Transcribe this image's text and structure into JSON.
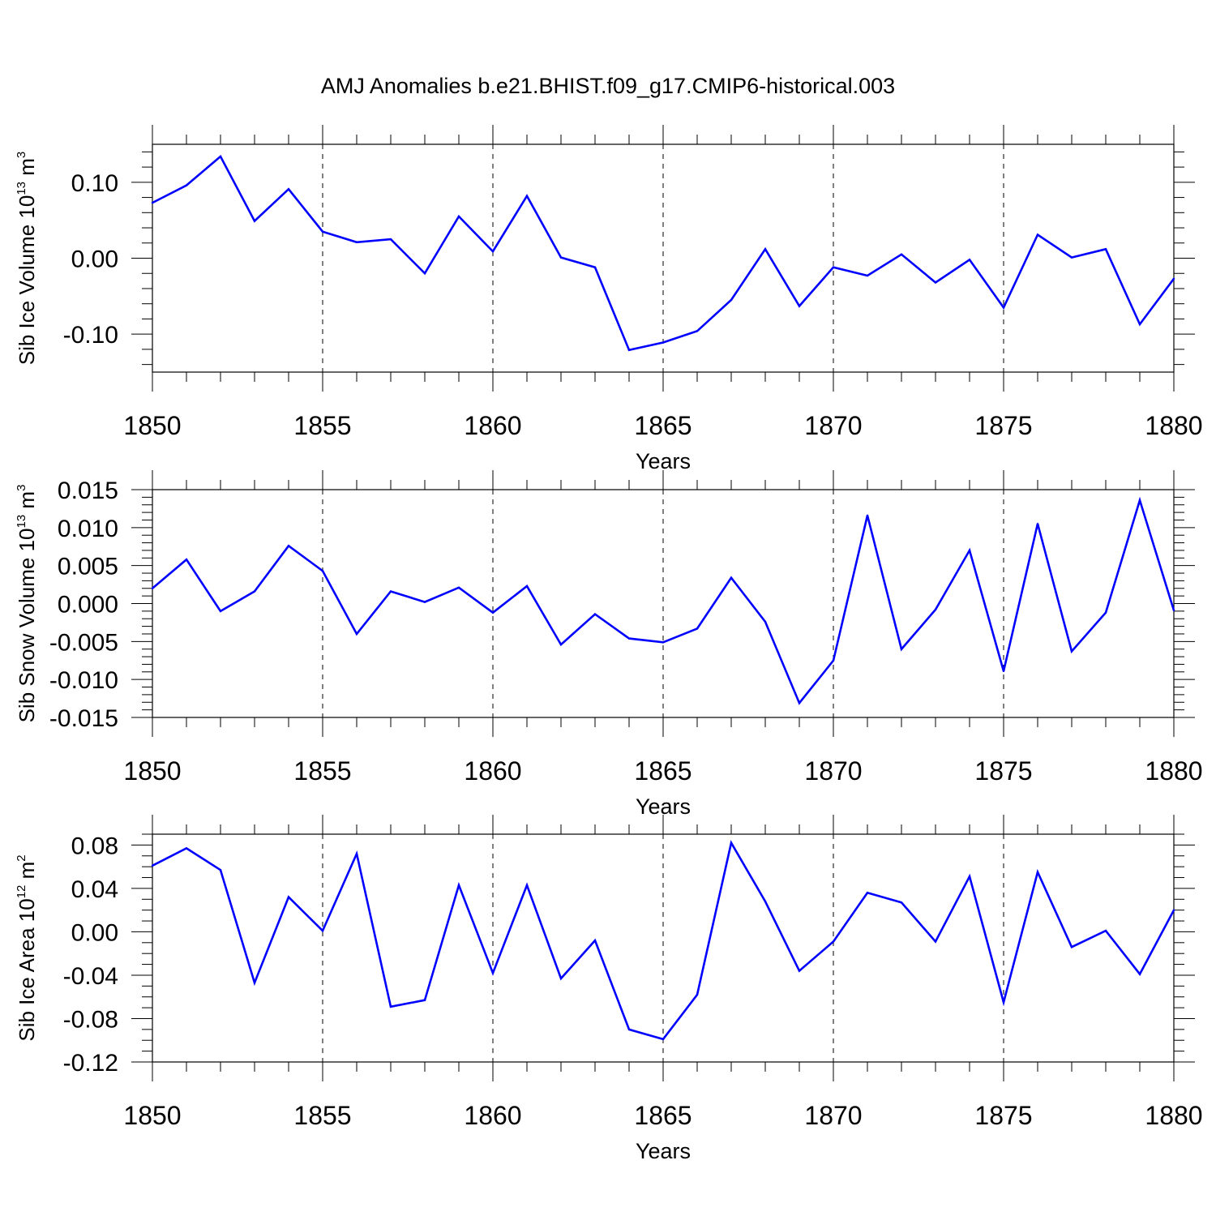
{
  "figure": {
    "title": "AMJ Anomalies b.e21.BHIST.f09_g17.CMIP6-historical.003"
  },
  "chart_data": [
    {
      "type": "line",
      "id": "ice-volume",
      "ylabel": "Sib Ice Volume 10",
      "ylabel_exponent": "13",
      "ylabel_unit": "m",
      "ylabel_unit_exponent": "3",
      "xlabel": "Years",
      "xlim": [
        1850,
        1880
      ],
      "ylim": [
        -0.15,
        0.15
      ],
      "yticks": [
        -0.1,
        0.0,
        0.1
      ],
      "ytick_labels": [
        "-0.10",
        "0.00",
        "0.10"
      ],
      "yminor_step": 0.02,
      "xticks": [
        1850,
        1855,
        1860,
        1865,
        1870,
        1875,
        1880
      ],
      "xtick_labels": [
        "1850",
        "1855",
        "1860",
        "1865",
        "1870",
        "1875",
        "1880"
      ],
      "line_color": "#0000ff",
      "x": [
        1850,
        1851,
        1852,
        1853,
        1854,
        1855,
        1856,
        1857,
        1858,
        1859,
        1860,
        1861,
        1862,
        1863,
        1864,
        1865,
        1866,
        1867,
        1868,
        1869,
        1870,
        1871,
        1872,
        1873,
        1874,
        1875,
        1876,
        1877,
        1878,
        1879,
        1880
      ],
      "values": [
        0.073,
        0.096,
        0.134,
        0.049,
        0.091,
        0.035,
        0.021,
        0.025,
        -0.02,
        0.055,
        0.009,
        0.082,
        0.001,
        -0.012,
        -0.121,
        -0.111,
        -0.096,
        -0.055,
        0.012,
        -0.063,
        -0.012,
        -0.023,
        0.005,
        -0.032,
        -0.002,
        -0.065,
        0.031,
        0.001,
        0.012,
        -0.087,
        -0.027
      ]
    },
    {
      "type": "line",
      "id": "snow-volume",
      "ylabel": "Sib Snow Volume 10",
      "ylabel_exponent": "13",
      "ylabel_unit": "m",
      "ylabel_unit_exponent": "3",
      "xlabel": "Years",
      "xlim": [
        1850,
        1880
      ],
      "ylim": [
        -0.015,
        0.015
      ],
      "yticks": [
        -0.015,
        -0.01,
        -0.005,
        0.0,
        0.005,
        0.01,
        0.015
      ],
      "ytick_labels": [
        "-0.015",
        "-0.010",
        "-0.005",
        "0.000",
        "0.005",
        "0.010",
        "0.015"
      ],
      "yminor_step": 0.001,
      "xticks": [
        1850,
        1855,
        1860,
        1865,
        1870,
        1875,
        1880
      ],
      "xtick_labels": [
        "1850",
        "1855",
        "1860",
        "1865",
        "1870",
        "1875",
        "1880"
      ],
      "line_color": "#0000ff",
      "x": [
        1850,
        1851,
        1852,
        1853,
        1854,
        1855,
        1856,
        1857,
        1858,
        1859,
        1860,
        1861,
        1862,
        1863,
        1864,
        1865,
        1866,
        1867,
        1868,
        1869,
        1870,
        1871,
        1872,
        1873,
        1874,
        1875,
        1876,
        1877,
        1878,
        1879,
        1880
      ],
      "values": [
        0.002,
        0.0058,
        -0.001,
        0.0016,
        0.0076,
        0.0043,
        -0.004,
        0.0016,
        0.0002,
        0.0021,
        -0.0012,
        0.0023,
        -0.0054,
        -0.0014,
        -0.0046,
        -0.0051,
        -0.0033,
        0.0034,
        -0.0024,
        -0.0131,
        -0.0075,
        0.0116,
        -0.006,
        -0.0008,
        0.007,
        -0.0089,
        0.0105,
        -0.0063,
        -0.0012,
        0.0136,
        -0.0009
      ]
    },
    {
      "type": "line",
      "id": "ice-area",
      "ylabel": "Sib Ice Area 10",
      "ylabel_exponent": "12",
      "ylabel_unit": "m",
      "ylabel_unit_exponent": "2",
      "xlabel": "Years",
      "xlim": [
        1850,
        1880
      ],
      "ylim": [
        -0.12,
        0.09
      ],
      "yticks": [
        -0.12,
        -0.08,
        -0.04,
        0.0,
        0.04,
        0.08
      ],
      "ytick_labels": [
        "-0.12",
        "-0.08",
        "-0.04",
        "0.00",
        "0.04",
        "0.08"
      ],
      "yminor_step": 0.01,
      "xticks": [
        1850,
        1855,
        1860,
        1865,
        1870,
        1875,
        1880
      ],
      "xtick_labels": [
        "1850",
        "1855",
        "1860",
        "1865",
        "1870",
        "1875",
        "1880"
      ],
      "line_color": "#0000ff",
      "x": [
        1850,
        1851,
        1852,
        1853,
        1854,
        1855,
        1856,
        1857,
        1858,
        1859,
        1860,
        1861,
        1862,
        1863,
        1864,
        1865,
        1866,
        1867,
        1868,
        1869,
        1870,
        1871,
        1872,
        1873,
        1874,
        1875,
        1876,
        1877,
        1878,
        1879,
        1880
      ],
      "values": [
        0.061,
        0.077,
        0.057,
        -0.047,
        0.032,
        0.001,
        0.072,
        -0.069,
        -0.063,
        0.043,
        -0.038,
        0.043,
        -0.043,
        -0.008,
        -0.09,
        -0.099,
        -0.058,
        0.082,
        0.028,
        -0.036,
        -0.009,
        0.036,
        0.027,
        -0.009,
        0.051,
        -0.065,
        0.055,
        -0.014,
        0.001,
        -0.039,
        0.02
      ]
    }
  ]
}
